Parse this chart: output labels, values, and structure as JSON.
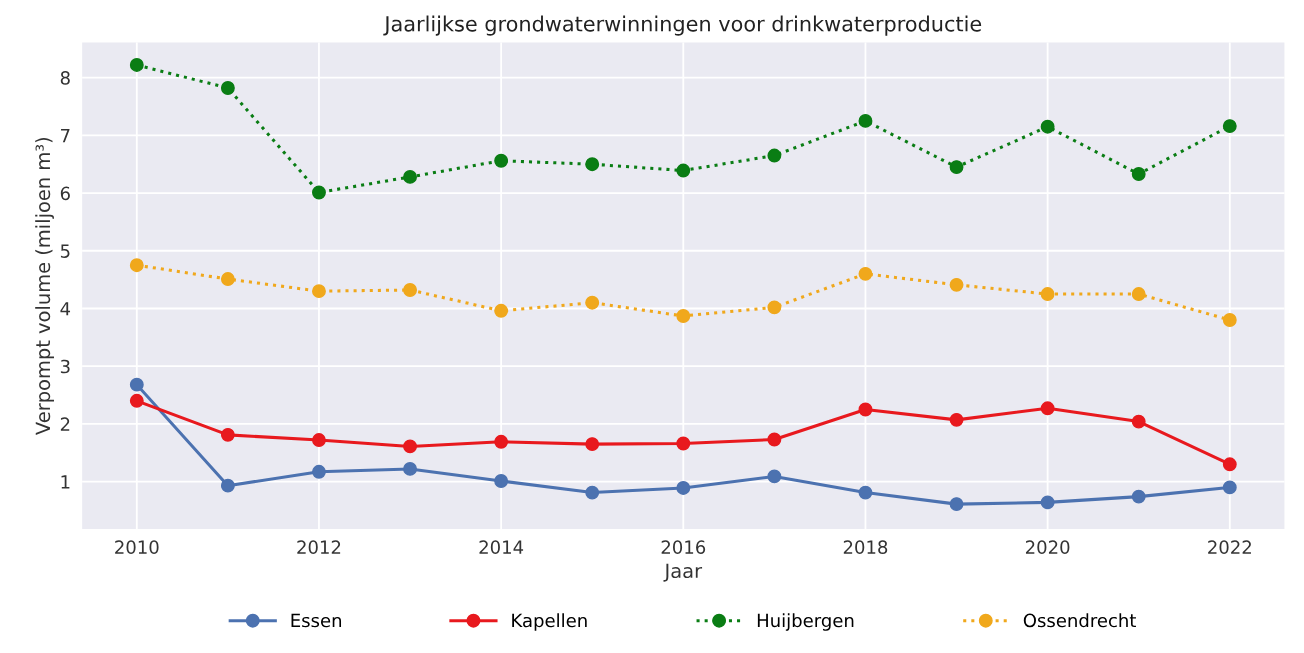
{
  "chart_data": {
    "type": "line",
    "title": "Jaarlijkse grondwaterwinningen voor drinkwaterproductie",
    "xlabel": "Jaar",
    "ylabel": "Verpompt volume (miljoen m³)",
    "x": [
      2010,
      2011,
      2012,
      2013,
      2014,
      2015,
      2016,
      2017,
      2018,
      2019,
      2020,
      2021,
      2022
    ],
    "series": [
      {
        "name": "Essen",
        "color": "#4c72b0",
        "line_style": "solid",
        "values": [
          2.68,
          0.93,
          1.17,
          1.22,
          1.01,
          0.81,
          0.89,
          1.09,
          0.81,
          0.61,
          0.64,
          0.74,
          0.9
        ]
      },
      {
        "name": "Kapellen",
        "color": "#e8191e",
        "line_style": "solid",
        "values": [
          2.4,
          1.81,
          1.72,
          1.61,
          1.69,
          1.65,
          1.66,
          1.73,
          2.25,
          2.07,
          2.27,
          2.04,
          1.3
        ]
      },
      {
        "name": "Huijbergen",
        "color": "#0a7d14",
        "line_style": "dotted",
        "values": [
          8.22,
          7.82,
          6.01,
          6.28,
          6.56,
          6.5,
          6.39,
          6.65,
          7.25,
          6.45,
          7.15,
          6.33,
          7.16
        ]
      },
      {
        "name": "Ossendrecht",
        "color": "#f0a81c",
        "line_style": "dotted",
        "values": [
          4.75,
          4.51,
          4.3,
          4.32,
          3.96,
          4.1,
          3.87,
          4.02,
          4.6,
          4.41,
          4.25,
          4.25,
          3.8
        ]
      }
    ],
    "xlim": [
      2009.4,
      2022.6
    ],
    "xticks": [
      2010,
      2012,
      2014,
      2016,
      2018,
      2020,
      2022
    ],
    "ylim": [
      0.18,
      8.61
    ],
    "yticks": [
      1,
      2,
      3,
      4,
      5,
      6,
      7,
      8
    ],
    "grid": true,
    "legend": "bottom",
    "marker": "circle"
  }
}
